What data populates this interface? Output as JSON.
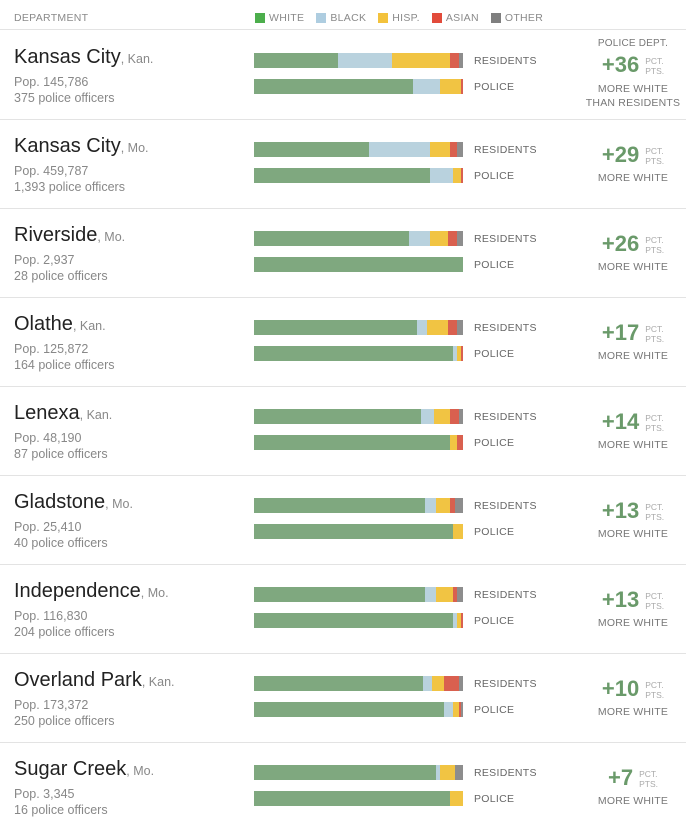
{
  "header": {
    "department_label": "DEPARTMENT",
    "legend": [
      {
        "label": "WHITE",
        "color": "#4cae4c"
      },
      {
        "label": "BLACK",
        "color": "#aecde0"
      },
      {
        "label": "HISP.",
        "color": "#f3c23c"
      },
      {
        "label": "ASIAN",
        "color": "#e24b3b"
      },
      {
        "label": "OTHER",
        "color": "#7f7f7f"
      }
    ]
  },
  "bar_colors": {
    "white": "#7fa87f",
    "black": "#b9d2de",
    "hisp": "#f1c443",
    "asian": "#d9604f",
    "other": "#8d8d8d"
  },
  "labels": {
    "residents": "RESIDENTS",
    "police": "POLICE",
    "pct": "PCT.",
    "pts": "PTS.",
    "more_white": "MORE WHITE",
    "first_top": "POLICE DEPT.",
    "first_more_line1": "MORE WHITE",
    "first_more_line2": "THAN RESIDENTS"
  },
  "chart_data": {
    "type": "bar",
    "stacked": true,
    "orientation": "horizontal",
    "categories_order": [
      "White",
      "Black",
      "Hisp.",
      "Asian",
      "Other"
    ],
    "departments": [
      {
        "name": "Kansas City",
        "state": ", Kan.",
        "pop": "Pop. 145,786",
        "officers": "375 police officers",
        "diff": "+36",
        "residents": [
          40,
          26,
          28,
          4,
          2
        ],
        "police": [
          76,
          13,
          10,
          1,
          0
        ]
      },
      {
        "name": "Kansas City",
        "state": ", Mo.",
        "pop": "Pop. 459,787",
        "officers": "1,393 police officers",
        "diff": "+29",
        "residents": [
          55,
          29,
          10,
          3,
          3
        ],
        "police": [
          84,
          11,
          4,
          1,
          0
        ]
      },
      {
        "name": "Riverside",
        "state": ", Mo.",
        "pop": "Pop. 2,937",
        "officers": "28 police officers",
        "diff": "+26",
        "residents": [
          74,
          10,
          9,
          4,
          3
        ],
        "police": [
          100,
          0,
          0,
          0,
          0
        ]
      },
      {
        "name": "Olathe",
        "state": ", Kan.",
        "pop": "Pop. 125,872",
        "officers": "164 police officers",
        "diff": "+17",
        "residents": [
          78,
          5,
          10,
          4,
          3
        ],
        "police": [
          95,
          2,
          2,
          1,
          0
        ]
      },
      {
        "name": "Lenexa",
        "state": ", Kan.",
        "pop": "Pop. 48,190",
        "officers": "87 police officers",
        "diff": "+14",
        "residents": [
          80,
          6,
          8,
          4,
          2
        ],
        "police": [
          94,
          0,
          3,
          3,
          0
        ]
      },
      {
        "name": "Gladstone",
        "state": ", Mo.",
        "pop": "Pop. 25,410",
        "officers": "40 police officers",
        "diff": "+13",
        "residents": [
          82,
          5,
          7,
          2,
          4
        ],
        "police": [
          95,
          0,
          5,
          0,
          0
        ]
      },
      {
        "name": "Independence",
        "state": ", Mo.",
        "pop": "Pop. 116,830",
        "officers": "204 police officers",
        "diff": "+13",
        "residents": [
          82,
          5,
          8,
          2,
          3
        ],
        "police": [
          95,
          2,
          2,
          1,
          0
        ]
      },
      {
        "name": "Overland Park",
        "state": ", Kan.",
        "pop": "Pop. 173,372",
        "officers": "250 police officers",
        "diff": "+10",
        "residents": [
          81,
          4,
          6,
          7,
          2
        ],
        "police": [
          91,
          4,
          3,
          1,
          1
        ]
      },
      {
        "name": "Sugar Creek",
        "state": ", Mo.",
        "pop": "Pop. 3,345",
        "officers": "16 police officers",
        "diff": "+7",
        "residents": [
          87,
          2,
          7,
          0,
          4
        ],
        "police": [
          94,
          0,
          6,
          0,
          0
        ]
      }
    ]
  }
}
